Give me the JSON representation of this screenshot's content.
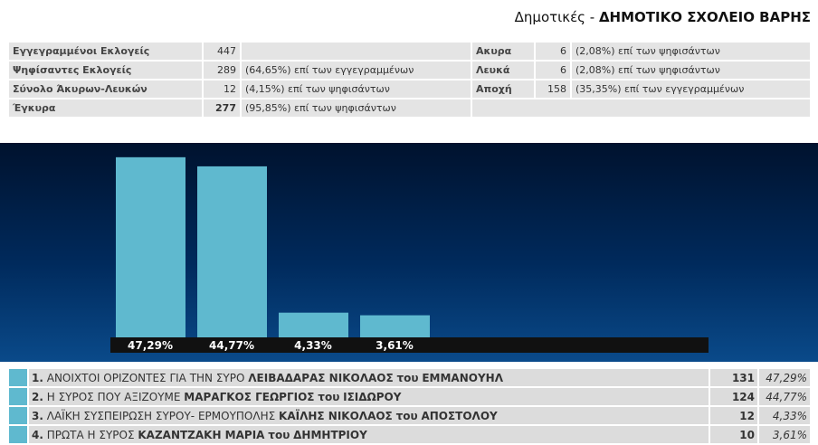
{
  "title": {
    "prefix": "Δημοτικές - ",
    "name": "ΔΗΜΟΤΙΚΟ ΣΧΟΛΕΙΟ ΒΑΡΗΣ"
  },
  "stats": {
    "left": [
      {
        "label": "Εγγεγραμμένοι Εκλογείς",
        "value": "447",
        "desc": ""
      },
      {
        "label": "Ψηφίσαντες Εκλογείς",
        "value": "289",
        "desc": "(64,65%) επί των εγγεγραμμένων"
      },
      {
        "label": "Σύνολο Άκυρων-Λευκών",
        "value": "12",
        "desc": "(4,15%) επί των ψηφισάντων"
      },
      {
        "label": "Έγκυρα",
        "value": "277",
        "desc": "(95,85%) επί των ψηφισάντων"
      }
    ],
    "right": [
      {
        "label": "Ακυρα",
        "value": "6",
        "desc": "(2,08%) επί των ψηφισάντων"
      },
      {
        "label": "Λευκά",
        "value": "6",
        "desc": "(2,08%) επί των ψηφισάντων"
      },
      {
        "label": "Αποχή",
        "value": "158",
        "desc": "(35,35%) επί των εγγεγραμμένων"
      }
    ]
  },
  "chart_data": {
    "type": "bar",
    "categories": [
      "1",
      "2",
      "3",
      "4"
    ],
    "values": [
      47.29,
      44.77,
      4.33,
      3.61
    ],
    "labels": [
      "47,29%",
      "44,77%",
      "4,33%",
      "3,61%"
    ],
    "bar_color": "#5fb9cf",
    "grid": false
  },
  "candidates": [
    {
      "num": "1.",
      "party": "ΑΝΟΙΧΤΟΙ ΟΡΙΖΟΝΤΕΣ ΓΙΑ ΤΗΝ ΣΥΡΟ",
      "name": "ΛΕΙΒΑΔΑΡΑΣ ΝΙΚΟΛΑΟΣ",
      "tou": "του",
      "father": "ΕΜΜΑΝΟΥΗΛ",
      "votes": "131",
      "pct": "47,29%"
    },
    {
      "num": "2.",
      "party": "Η ΣΥΡΟΣ ΠΟΥ ΑΞΙΖΟΥΜΕ",
      "name": "ΜΑΡΑΓΚΟΣ ΓΕΩΡΓΙΟΣ",
      "tou": "του",
      "father": "ΙΣΙΔΩΡΟΥ",
      "votes": "124",
      "pct": "44,77%"
    },
    {
      "num": "3.",
      "party": "ΛΑΪΚΗ ΣΥΣΠΕΙΡΩΣΗ ΣΥΡΟΥ- ΕΡΜΟΥΠΟΛΗΣ",
      "name": "ΚΑΪΛΗΣ ΝΙΚΟΛΑΟΣ",
      "tou": "του",
      "father": "ΑΠΟΣΤΟΛΟΥ",
      "votes": "12",
      "pct": "4,33%"
    },
    {
      "num": "4.",
      "party": "ΠΡΩΤΑ Η ΣΥΡΟΣ",
      "name": "ΚΑΖΑΝΤΖΑΚΗ ΜΑΡΙΑ",
      "tou": "του",
      "father": "ΔΗΜΗΤΡΙΟΥ",
      "votes": "10",
      "pct": "3,61%"
    }
  ]
}
